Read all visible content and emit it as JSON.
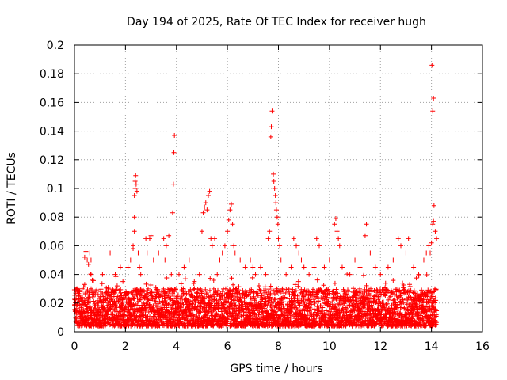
{
  "chart_data": {
    "type": "scatter",
    "title": "Day 194 of 2025, Rate Of TEC Index for receiver hugh",
    "xlabel": "GPS time / hours",
    "ylabel": "ROTI / TECUs",
    "xlim": [
      0,
      16
    ],
    "ylim": [
      0,
      0.2
    ],
    "grid": true,
    "marker": "+",
    "series_color": "#ff0000",
    "x_ticks": [
      {
        "value": 0,
        "label": "0"
      },
      {
        "value": 2,
        "label": "2"
      },
      {
        "value": 4,
        "label": "4"
      },
      {
        "value": 6,
        "label": "6"
      },
      {
        "value": 8,
        "label": "8"
      },
      {
        "value": 10,
        "label": "10"
      },
      {
        "value": 12,
        "label": "12"
      },
      {
        "value": 14,
        "label": "14"
      },
      {
        "value": 16,
        "label": "16"
      }
    ],
    "y_ticks": [
      {
        "value": 0,
        "label": "0"
      },
      {
        "value": 0.02,
        "label": "0.02"
      },
      {
        "value": 0.04,
        "label": "0.04"
      },
      {
        "value": 0.06,
        "label": "0.06"
      },
      {
        "value": 0.08,
        "label": "0.08"
      },
      {
        "value": 0.1,
        "label": "0.1"
      },
      {
        "value": 0.12,
        "label": "0.12"
      },
      {
        "value": 0.14,
        "label": "0.14"
      },
      {
        "value": 0.16,
        "label": "0.16"
      },
      {
        "value": 0.18,
        "label": "0.18"
      },
      {
        "value": 0.2,
        "label": "0.2"
      }
    ],
    "baseline": {
      "x_start": 0.0,
      "x_end": 14.2,
      "typical_min": 0.004,
      "typical_max": 0.03
    },
    "points": [
      [
        0.05,
        0.027
      ],
      [
        0.1,
        0.03
      ],
      [
        0.3,
        0.03
      ],
      [
        0.4,
        0.033
      ],
      [
        0.4,
        0.052
      ],
      [
        0.45,
        0.056
      ],
      [
        0.5,
        0.05
      ],
      [
        0.55,
        0.047
      ],
      [
        0.6,
        0.055
      ],
      [
        0.65,
        0.04
      ],
      [
        0.65,
        0.05
      ],
      [
        0.7,
        0.036
      ],
      [
        1.1,
        0.04
      ],
      [
        1.4,
        0.055
      ],
      [
        1.6,
        0.04
      ],
      [
        1.8,
        0.045
      ],
      [
        1.9,
        0.035
      ],
      [
        2.1,
        0.045
      ],
      [
        2.2,
        0.05
      ],
      [
        2.3,
        0.058
      ],
      [
        2.3,
        0.06
      ],
      [
        2.35,
        0.07
      ],
      [
        2.35,
        0.08
      ],
      [
        2.35,
        0.095
      ],
      [
        2.38,
        0.1
      ],
      [
        2.38,
        0.105
      ],
      [
        2.4,
        0.109
      ],
      [
        2.42,
        0.103
      ],
      [
        2.45,
        0.098
      ],
      [
        2.5,
        0.055
      ],
      [
        2.55,
        0.045
      ],
      [
        2.6,
        0.04
      ],
      [
        2.8,
        0.065
      ],
      [
        2.85,
        0.055
      ],
      [
        2.95,
        0.065
      ],
      [
        3.0,
        0.067
      ],
      [
        3.1,
        0.05
      ],
      [
        3.3,
        0.055
      ],
      [
        3.5,
        0.065
      ],
      [
        3.55,
        0.05
      ],
      [
        3.6,
        0.06
      ],
      [
        3.7,
        0.067
      ],
      [
        3.8,
        0.04
      ],
      [
        3.85,
        0.083
      ],
      [
        3.88,
        0.103
      ],
      [
        3.9,
        0.125
      ],
      [
        3.92,
        0.137
      ],
      [
        4.1,
        0.04
      ],
      [
        4.3,
        0.045
      ],
      [
        4.5,
        0.05
      ],
      [
        4.7,
        0.035
      ],
      [
        4.9,
        0.04
      ],
      [
        5.0,
        0.07
      ],
      [
        5.05,
        0.083
      ],
      [
        5.1,
        0.087
      ],
      [
        5.15,
        0.09
      ],
      [
        5.2,
        0.085
      ],
      [
        5.25,
        0.095
      ],
      [
        5.3,
        0.098
      ],
      [
        5.35,
        0.065
      ],
      [
        5.4,
        0.06
      ],
      [
        5.5,
        0.065
      ],
      [
        5.6,
        0.04
      ],
      [
        5.7,
        0.05
      ],
      [
        5.8,
        0.055
      ],
      [
        5.9,
        0.06
      ],
      [
        6.0,
        0.07
      ],
      [
        6.05,
        0.078
      ],
      [
        6.1,
        0.085
      ],
      [
        6.15,
        0.089
      ],
      [
        6.2,
        0.075
      ],
      [
        6.25,
        0.06
      ],
      [
        6.3,
        0.055
      ],
      [
        6.5,
        0.05
      ],
      [
        6.7,
        0.045
      ],
      [
        6.9,
        0.05
      ],
      [
        7.0,
        0.045
      ],
      [
        7.1,
        0.04
      ],
      [
        7.3,
        0.045
      ],
      [
        7.5,
        0.04
      ],
      [
        7.6,
        0.065
      ],
      [
        7.65,
        0.07
      ],
      [
        7.7,
        0.136
      ],
      [
        7.72,
        0.143
      ],
      [
        7.75,
        0.154
      ],
      [
        7.8,
        0.11
      ],
      [
        7.82,
        0.105
      ],
      [
        7.85,
        0.1
      ],
      [
        7.88,
        0.095
      ],
      [
        7.9,
        0.09
      ],
      [
        7.92,
        0.085
      ],
      [
        7.95,
        0.08
      ],
      [
        7.98,
        0.075
      ],
      [
        8.0,
        0.065
      ],
      [
        8.05,
        0.06
      ],
      [
        8.1,
        0.05
      ],
      [
        8.3,
        0.04
      ],
      [
        8.5,
        0.045
      ],
      [
        8.6,
        0.065
      ],
      [
        8.7,
        0.06
      ],
      [
        8.8,
        0.055
      ],
      [
        8.9,
        0.05
      ],
      [
        9.0,
        0.045
      ],
      [
        9.2,
        0.04
      ],
      [
        9.4,
        0.045
      ],
      [
        9.5,
        0.065
      ],
      [
        9.6,
        0.06
      ],
      [
        9.8,
        0.045
      ],
      [
        10.0,
        0.05
      ],
      [
        10.2,
        0.075
      ],
      [
        10.25,
        0.079
      ],
      [
        10.3,
        0.07
      ],
      [
        10.35,
        0.065
      ],
      [
        10.4,
        0.06
      ],
      [
        10.5,
        0.045
      ],
      [
        10.8,
        0.04
      ],
      [
        11.0,
        0.05
      ],
      [
        11.2,
        0.045
      ],
      [
        11.4,
        0.067
      ],
      [
        11.45,
        0.075
      ],
      [
        11.6,
        0.055
      ],
      [
        11.8,
        0.045
      ],
      [
        12.0,
        0.04
      ],
      [
        12.3,
        0.045
      ],
      [
        12.5,
        0.05
      ],
      [
        12.7,
        0.065
      ],
      [
        12.8,
        0.06
      ],
      [
        13.0,
        0.055
      ],
      [
        13.1,
        0.065
      ],
      [
        13.3,
        0.045
      ],
      [
        13.5,
        0.04
      ],
      [
        13.7,
        0.05
      ],
      [
        13.8,
        0.055
      ],
      [
        13.9,
        0.06
      ],
      [
        13.95,
        0.055
      ],
      [
        14.0,
        0.062
      ],
      [
        14.05,
        0.075
      ],
      [
        14.08,
        0.077
      ],
      [
        14.1,
        0.088
      ],
      [
        14.05,
        0.154
      ],
      [
        14.08,
        0.163
      ],
      [
        14.02,
        0.186
      ],
      [
        14.15,
        0.07
      ],
      [
        14.2,
        0.065
      ]
    ]
  }
}
